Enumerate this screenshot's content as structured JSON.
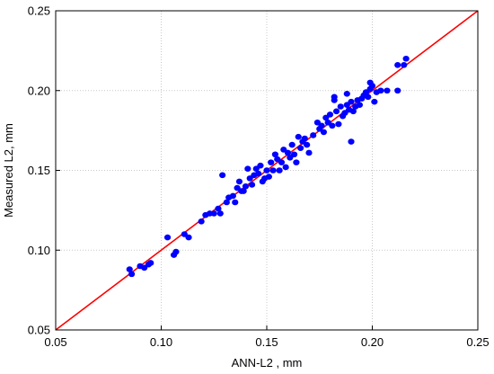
{
  "chart_data": {
    "type": "scatter",
    "title": "",
    "xlabel": "ANN-L2 , mm",
    "ylabel": "Measured L2, mm",
    "xlim": [
      0.05,
      0.25
    ],
    "ylim": [
      0.05,
      0.25
    ],
    "xticks": [
      "0.05",
      "0.10",
      "0.15",
      "0.20",
      "0.25"
    ],
    "yticks": [
      "0.05",
      "0.10",
      "0.15",
      "0.20",
      "0.25"
    ],
    "grid": true,
    "grid_style": "dotted",
    "point_color": "#0000ff",
    "line_color": "#ff0000",
    "reference_line": {
      "from": [
        0.05,
        0.05
      ],
      "to": [
        0.25,
        0.25
      ]
    },
    "series": [
      {
        "points": [
          [
            0.085,
            0.088
          ],
          [
            0.086,
            0.085
          ],
          [
            0.09,
            0.09
          ],
          [
            0.092,
            0.089
          ],
          [
            0.094,
            0.091
          ],
          [
            0.095,
            0.092
          ],
          [
            0.103,
            0.108
          ],
          [
            0.106,
            0.097
          ],
          [
            0.107,
            0.099
          ],
          [
            0.111,
            0.11
          ],
          [
            0.113,
            0.108
          ],
          [
            0.119,
            0.118
          ],
          [
            0.121,
            0.122
          ],
          [
            0.123,
            0.123
          ],
          [
            0.125,
            0.123
          ],
          [
            0.127,
            0.126
          ],
          [
            0.128,
            0.123
          ],
          [
            0.129,
            0.147
          ],
          [
            0.131,
            0.13
          ],
          [
            0.132,
            0.133
          ],
          [
            0.134,
            0.134
          ],
          [
            0.135,
            0.13
          ],
          [
            0.136,
            0.139
          ],
          [
            0.137,
            0.143
          ],
          [
            0.138,
            0.137
          ],
          [
            0.139,
            0.137
          ],
          [
            0.14,
            0.14
          ],
          [
            0.141,
            0.151
          ],
          [
            0.142,
            0.145
          ],
          [
            0.143,
            0.141
          ],
          [
            0.144,
            0.147
          ],
          [
            0.145,
            0.151
          ],
          [
            0.146,
            0.148
          ],
          [
            0.147,
            0.153
          ],
          [
            0.148,
            0.143
          ],
          [
            0.149,
            0.145
          ],
          [
            0.15,
            0.15
          ],
          [
            0.151,
            0.146
          ],
          [
            0.152,
            0.155
          ],
          [
            0.153,
            0.15
          ],
          [
            0.154,
            0.16
          ],
          [
            0.155,
            0.157
          ],
          [
            0.156,
            0.15
          ],
          [
            0.157,
            0.155
          ],
          [
            0.158,
            0.163
          ],
          [
            0.159,
            0.152
          ],
          [
            0.16,
            0.161
          ],
          [
            0.161,
            0.158
          ],
          [
            0.162,
            0.166
          ],
          [
            0.163,
            0.16
          ],
          [
            0.164,
            0.155
          ],
          [
            0.165,
            0.171
          ],
          [
            0.166,
            0.164
          ],
          [
            0.167,
            0.168
          ],
          [
            0.168,
            0.17
          ],
          [
            0.169,
            0.166
          ],
          [
            0.17,
            0.161
          ],
          [
            0.172,
            0.172
          ],
          [
            0.174,
            0.18
          ],
          [
            0.175,
            0.176
          ],
          [
            0.176,
            0.178
          ],
          [
            0.177,
            0.174
          ],
          [
            0.178,
            0.183
          ],
          [
            0.179,
            0.18
          ],
          [
            0.18,
            0.185
          ],
          [
            0.181,
            0.178
          ],
          [
            0.182,
            0.194
          ],
          [
            0.182,
            0.196
          ],
          [
            0.183,
            0.187
          ],
          [
            0.184,
            0.179
          ],
          [
            0.185,
            0.19
          ],
          [
            0.186,
            0.184
          ],
          [
            0.187,
            0.186
          ],
          [
            0.188,
            0.191
          ],
          [
            0.188,
            0.198
          ],
          [
            0.189,
            0.188
          ],
          [
            0.19,
            0.168
          ],
          [
            0.19,
            0.193
          ],
          [
            0.191,
            0.187
          ],
          [
            0.192,
            0.19
          ],
          [
            0.193,
            0.194
          ],
          [
            0.194,
            0.191
          ],
          [
            0.195,
            0.195
          ],
          [
            0.196,
            0.197
          ],
          [
            0.197,
            0.199
          ],
          [
            0.198,
            0.196
          ],
          [
            0.199,
            0.201
          ],
          [
            0.199,
            0.205
          ],
          [
            0.2,
            0.203
          ],
          [
            0.201,
            0.193
          ],
          [
            0.202,
            0.199
          ],
          [
            0.204,
            0.2
          ],
          [
            0.207,
            0.2
          ],
          [
            0.212,
            0.2
          ],
          [
            0.212,
            0.216
          ],
          [
            0.215,
            0.216
          ],
          [
            0.216,
            0.22
          ]
        ]
      }
    ]
  }
}
